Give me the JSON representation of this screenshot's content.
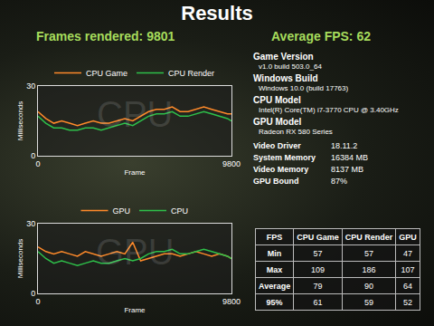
{
  "header": {
    "title": "Results",
    "stats": [
      {
        "label": "Frames rendered:",
        "value": "9801"
      },
      {
        "label": "Average FPS:",
        "value": "62"
      }
    ]
  },
  "chart_data": [
    {
      "type": "line",
      "annotations": [
        "CPU"
      ],
      "xlabel": "Frame",
      "ylabel": "Milliseconds",
      "x": [
        0,
        400,
        800,
        1200,
        1600,
        2000,
        2400,
        2800,
        3200,
        3600,
        4000,
        4400,
        4800,
        5200,
        5600,
        6000,
        6400,
        6800,
        7200,
        7600,
        8000,
        8400,
        8800,
        9200,
        9600,
        9800
      ],
      "series": [
        {
          "name": "CPU Game",
          "color": "#ff8a2a",
          "values": [
            19,
            16,
            14,
            15,
            14,
            13,
            14,
            15,
            14,
            14,
            15,
            16,
            15,
            17,
            19,
            20,
            20,
            21,
            19,
            19,
            20,
            21,
            20,
            19,
            18,
            18
          ]
        },
        {
          "name": "CPU Render",
          "color": "#2ec04a",
          "values": [
            17,
            14,
            12,
            12,
            11,
            11,
            12,
            12,
            11,
            12,
            13,
            14,
            13,
            15,
            17,
            18,
            18,
            19,
            17,
            17,
            18,
            19,
            18,
            17,
            16,
            15
          ]
        }
      ],
      "xlim": [
        0,
        9800
      ],
      "xticks": [
        0,
        9800
      ],
      "ylim": [
        0,
        30
      ],
      "yticks": [
        0,
        30
      ],
      "grid": false,
      "legend": "top"
    },
    {
      "type": "line",
      "annotations": [
        "GPU"
      ],
      "xlabel": "Frame",
      "ylabel": "Milliseconds",
      "x": [
        0,
        400,
        800,
        1200,
        1600,
        2000,
        2400,
        2800,
        3200,
        3600,
        4000,
        4400,
        4800,
        5200,
        5600,
        6000,
        6400,
        6800,
        7200,
        7600,
        8000,
        8400,
        8800,
        9200,
        9600,
        9800
      ],
      "series": [
        {
          "name": "GPU",
          "color": "#ff8a2a",
          "values": [
            20,
            18,
            17,
            18,
            17,
            16,
            18,
            17,
            16,
            17,
            18,
            17,
            22,
            14,
            15,
            16,
            17,
            17,
            16,
            17,
            18,
            17,
            16,
            17,
            16,
            15
          ]
        },
        {
          "name": "CPU",
          "color": "#2ec04a",
          "values": [
            18,
            15,
            13,
            14,
            13,
            12,
            13,
            14,
            13,
            13,
            14,
            15,
            14,
            15,
            17,
            18,
            18,
            19,
            17,
            17,
            18,
            19,
            18,
            17,
            16,
            15
          ]
        }
      ],
      "xlim": [
        0,
        9800
      ],
      "xticks": [
        0,
        9800
      ],
      "ylim": [
        0,
        30
      ],
      "yticks": [
        0,
        30
      ],
      "grid": false,
      "legend": "top"
    }
  ],
  "details": [
    {
      "label": "Game Version",
      "value": "v1.0 build 503.0_64"
    },
    {
      "label": "Windows Build",
      "value": "Windows 10.0 (build 17763)"
    },
    {
      "label": "CPU Model",
      "value": "Intel(R) Core(TM) i7-3770 CPU @ 3.40GHz"
    },
    {
      "label": "GPU Model",
      "value": "Radeon RX 580 Series"
    }
  ],
  "summary": [
    {
      "label": "Video Driver",
      "value": "18.11.2"
    },
    {
      "label": "System Memory",
      "value": "16384 MB"
    },
    {
      "label": "Video Memory",
      "value": "8137 MB"
    },
    {
      "label": "GPU Bound",
      "value": "87%"
    }
  ],
  "table": {
    "header": [
      "FPS",
      "CPU Game",
      "CPU Render",
      "GPU"
    ],
    "rows": [
      [
        "Min",
        "57",
        "57",
        "47"
      ],
      [
        "Max",
        "109",
        "186",
        "107"
      ],
      [
        "Average",
        "79",
        "90",
        "64"
      ],
      [
        "95%",
        "61",
        "59",
        "52"
      ]
    ]
  }
}
